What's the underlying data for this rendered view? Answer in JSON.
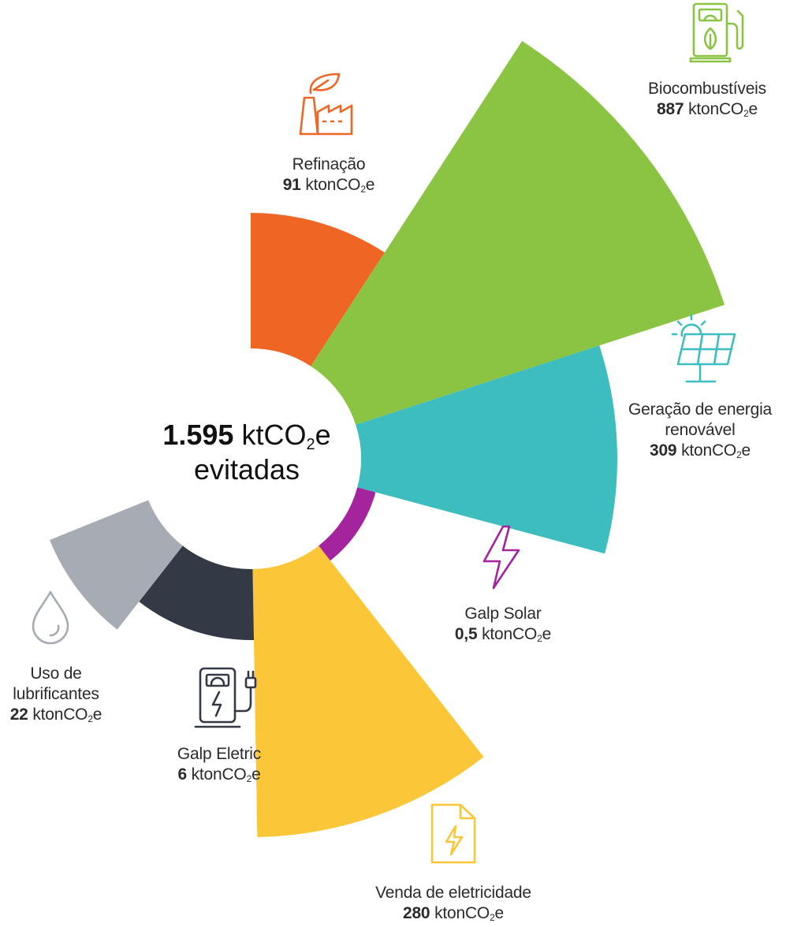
{
  "center": {
    "total": "1.595",
    "unit_prefix": "ktCO",
    "unit_sub": "2",
    "unit_suffix": "e",
    "caption": "evitadas"
  },
  "colors": {
    "refinacao": "#EF6624",
    "biocombustiveis": "#8BC443",
    "geracao": "#3DBDBE",
    "solar": "#A3249C",
    "venda": "#FBC638",
    "eletric": "#343A45",
    "lubrificantes": "#A6ABB4"
  },
  "chart_data": {
    "type": "pie",
    "title": "",
    "unit": "ktonCO2e",
    "total": 1595,
    "slices": [
      {
        "key": "refinacao",
        "label": "Refinação",
        "value": 91,
        "display": "91",
        "icon": "factory-leaf-icon",
        "color": "#EF6624"
      },
      {
        "key": "biocombustiveis",
        "label": "Biocombustíveis",
        "value": 887,
        "display": "887",
        "icon": "fuel-pump-leaf-icon",
        "color": "#8BC443"
      },
      {
        "key": "geracao",
        "label": "Geração de energia renovável",
        "value": 309,
        "display": "309",
        "icon": "solar-panel-icon",
        "color": "#3DBDBE"
      },
      {
        "key": "solar",
        "label": "Galp Solar",
        "value": 0.5,
        "display": "0,5",
        "icon": "lightning-icon",
        "color": "#A3249C"
      },
      {
        "key": "venda",
        "label": "Venda de eletricidade",
        "value": 280,
        "display": "280",
        "icon": "document-lightning-icon",
        "color": "#FBC638"
      },
      {
        "key": "eletric",
        "label": "Galp Eletric",
        "value": 6,
        "display": "6",
        "icon": "charging-station-icon",
        "color": "#343A45"
      },
      {
        "key": "lubrificantes",
        "label": "Uso de lubrificantes",
        "value": 22,
        "display": "22",
        "icon": "droplet-icon",
        "color": "#A6ABB4"
      }
    ]
  },
  "labels": {
    "refinacao": {
      "line1": "Refinação",
      "value": "91",
      "unit_prefix": "ktonCO",
      "unit_sub": "2",
      "unit_suffix": "e"
    },
    "biocombustiveis": {
      "line1": "Biocombustíveis",
      "value": "887",
      "unit_prefix": "ktonCO",
      "unit_sub": "2",
      "unit_suffix": "e"
    },
    "geracao": {
      "line1": "Geração de energia",
      "line2": "renovável",
      "value": "309",
      "unit_prefix": "ktonCO",
      "unit_sub": "2",
      "unit_suffix": "e"
    },
    "solar": {
      "line1": "Galp Solar",
      "value": "0,5",
      "unit_prefix": "ktonCO",
      "unit_sub": "2",
      "unit_suffix": "e"
    },
    "venda": {
      "line1": "Venda de eletricidade",
      "value": "280",
      "unit_prefix": "ktonCO",
      "unit_sub": "2",
      "unit_suffix": "e"
    },
    "eletric": {
      "line1": "Galp Eletric",
      "value": "6",
      "unit_prefix": "ktonCO",
      "unit_sub": "2",
      "unit_suffix": "e"
    },
    "lubrificantes": {
      "line1": "Uso de",
      "line2": "lubrificantes",
      "value": "22",
      "unit_prefix": "ktonCO",
      "unit_sub": "2",
      "unit_suffix": "e"
    }
  }
}
